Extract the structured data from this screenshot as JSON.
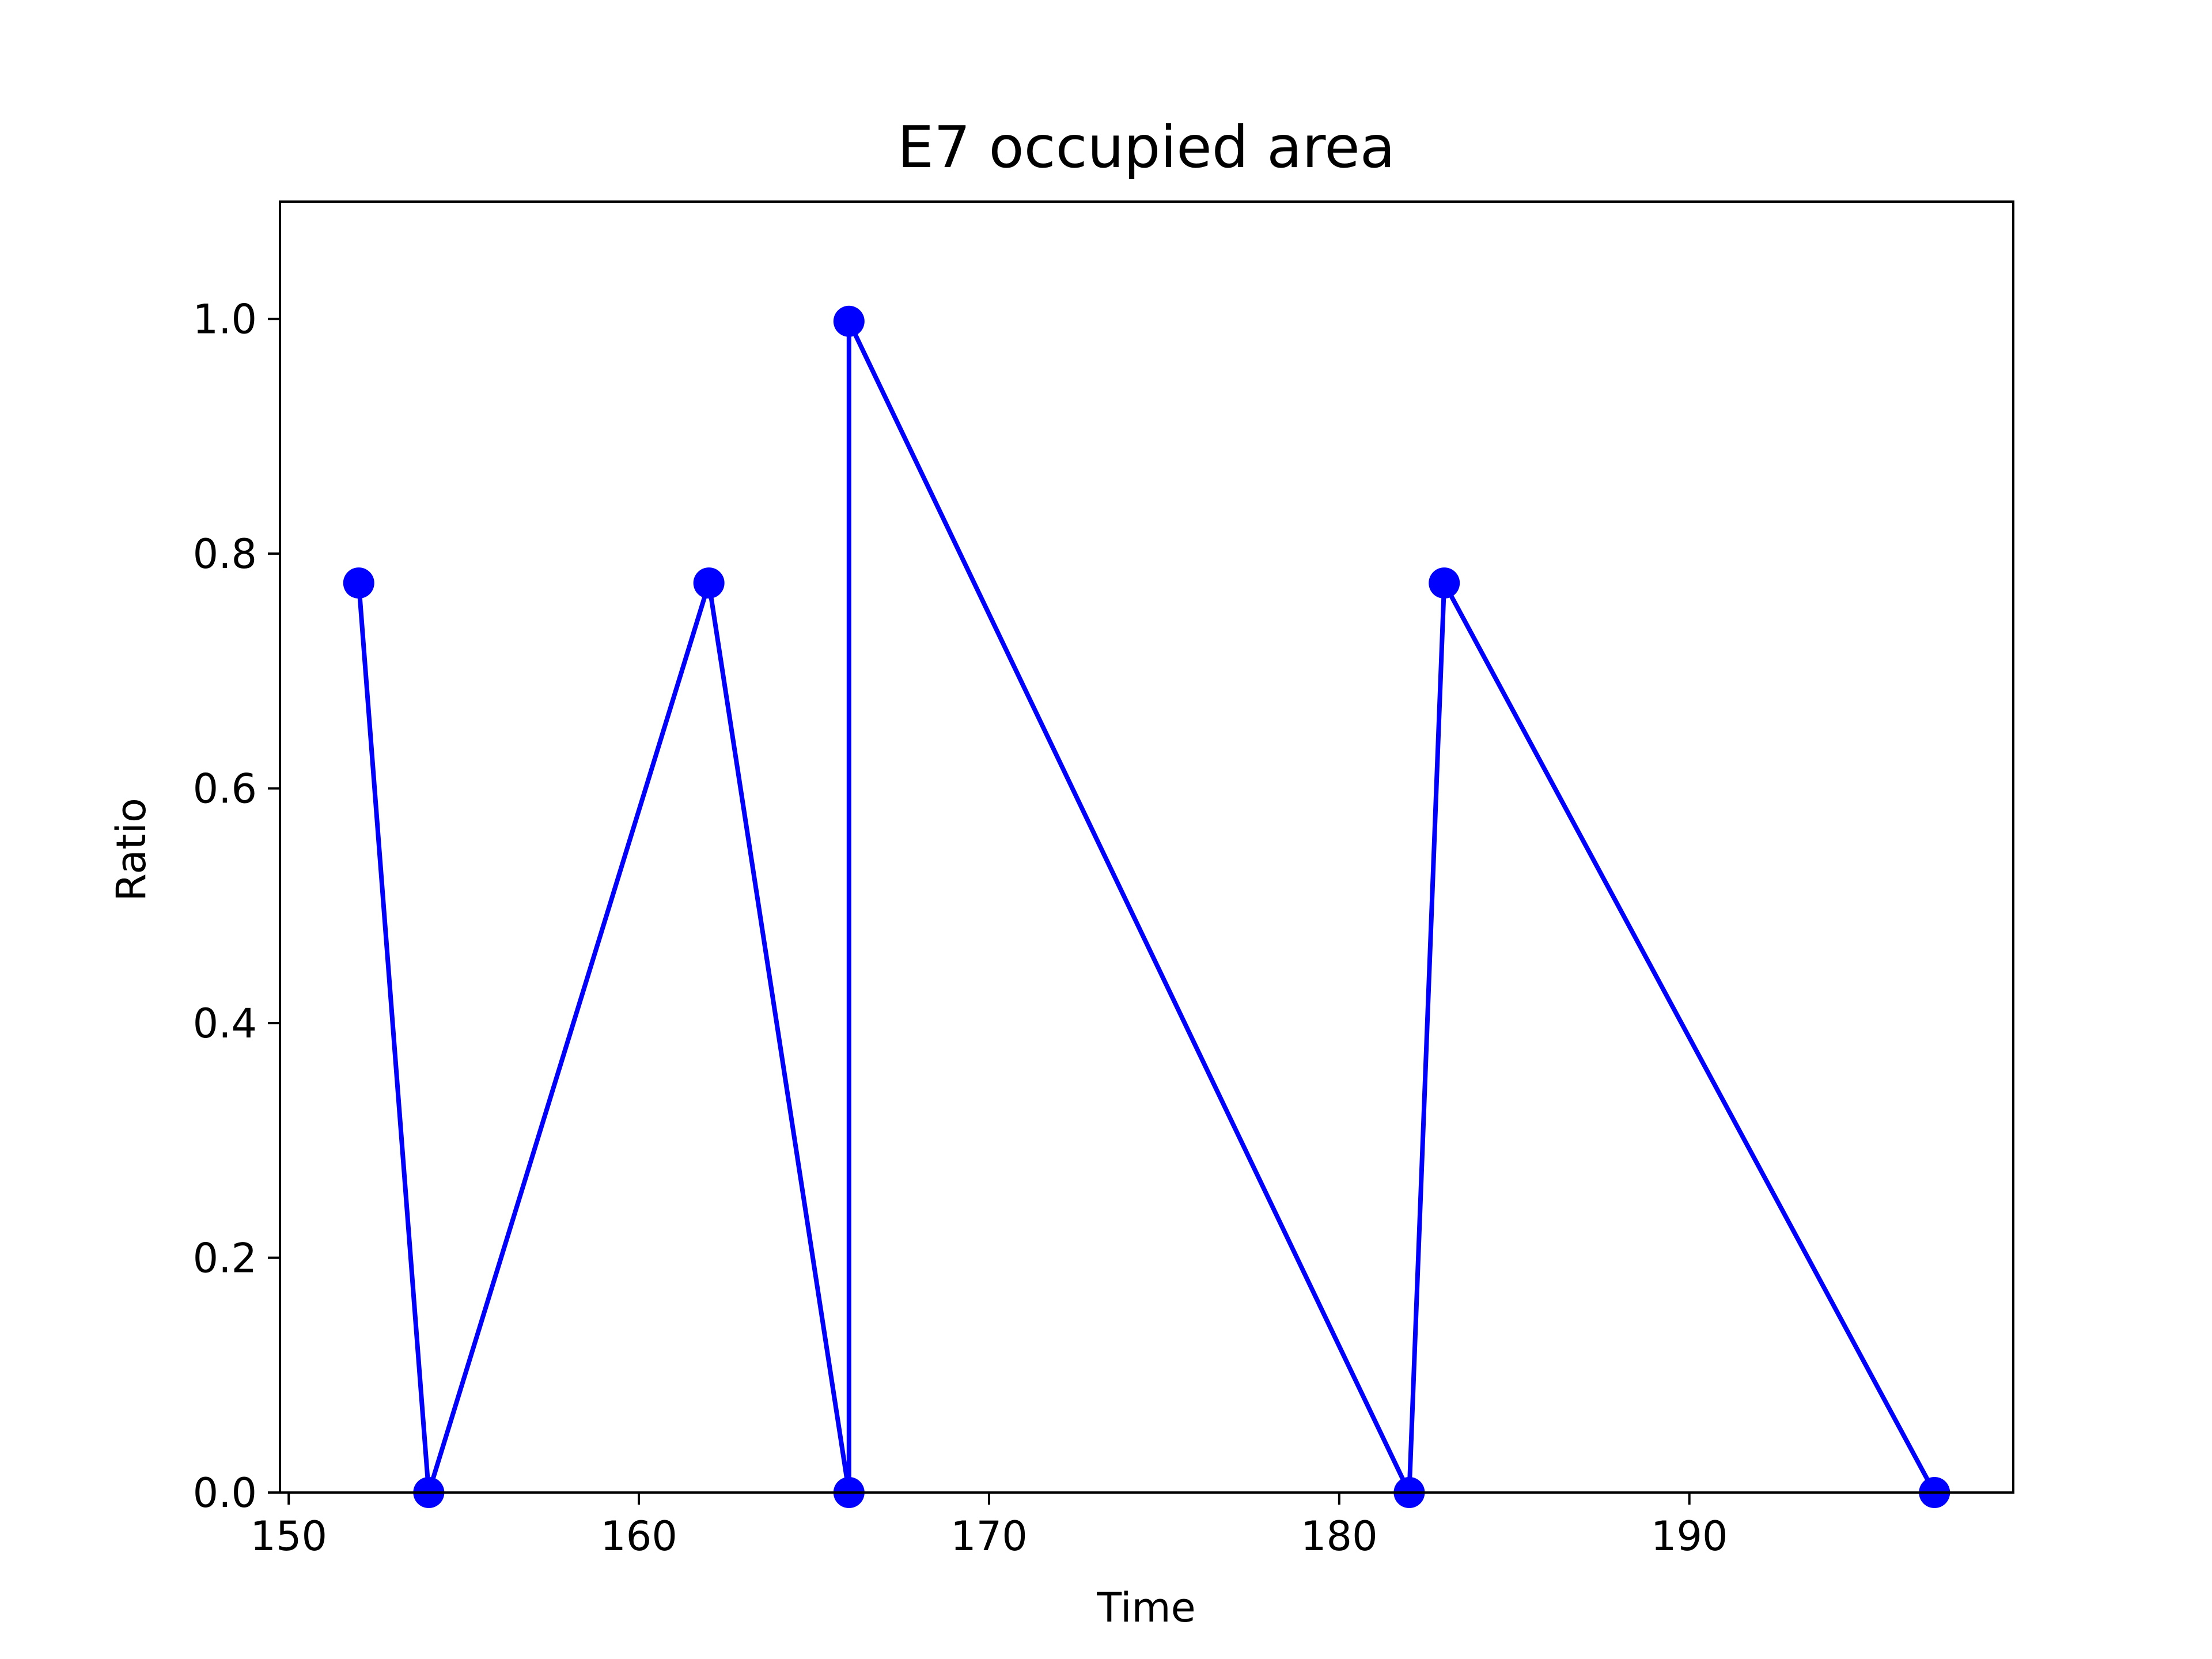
{
  "chart_data": {
    "type": "line",
    "title": "E7 occupied area",
    "xlabel": "Time",
    "ylabel": "Ratio",
    "xlim": [
      149.75,
      199.25
    ],
    "ylim": [
      0.0,
      1.1
    ],
    "xticks": [
      150,
      160,
      170,
      180,
      190
    ],
    "xtick_labels": [
      "150",
      "160",
      "170",
      "180",
      "190"
    ],
    "yticks": [
      0.0,
      0.2,
      0.4,
      0.6,
      0.8,
      1.0
    ],
    "ytick_labels": [
      "0.0",
      "0.2",
      "0.4",
      "0.6",
      "0.8",
      "1.0"
    ],
    "grid": false,
    "series": [
      {
        "color": "#0000ff",
        "marker": "circle",
        "x": [
          152,
          154,
          162,
          166,
          166,
          182,
          183,
          197
        ],
        "y": [
          0.775,
          0.0,
          0.775,
          0.0,
          0.998,
          0.0,
          0.775,
          0.0
        ]
      }
    ]
  }
}
